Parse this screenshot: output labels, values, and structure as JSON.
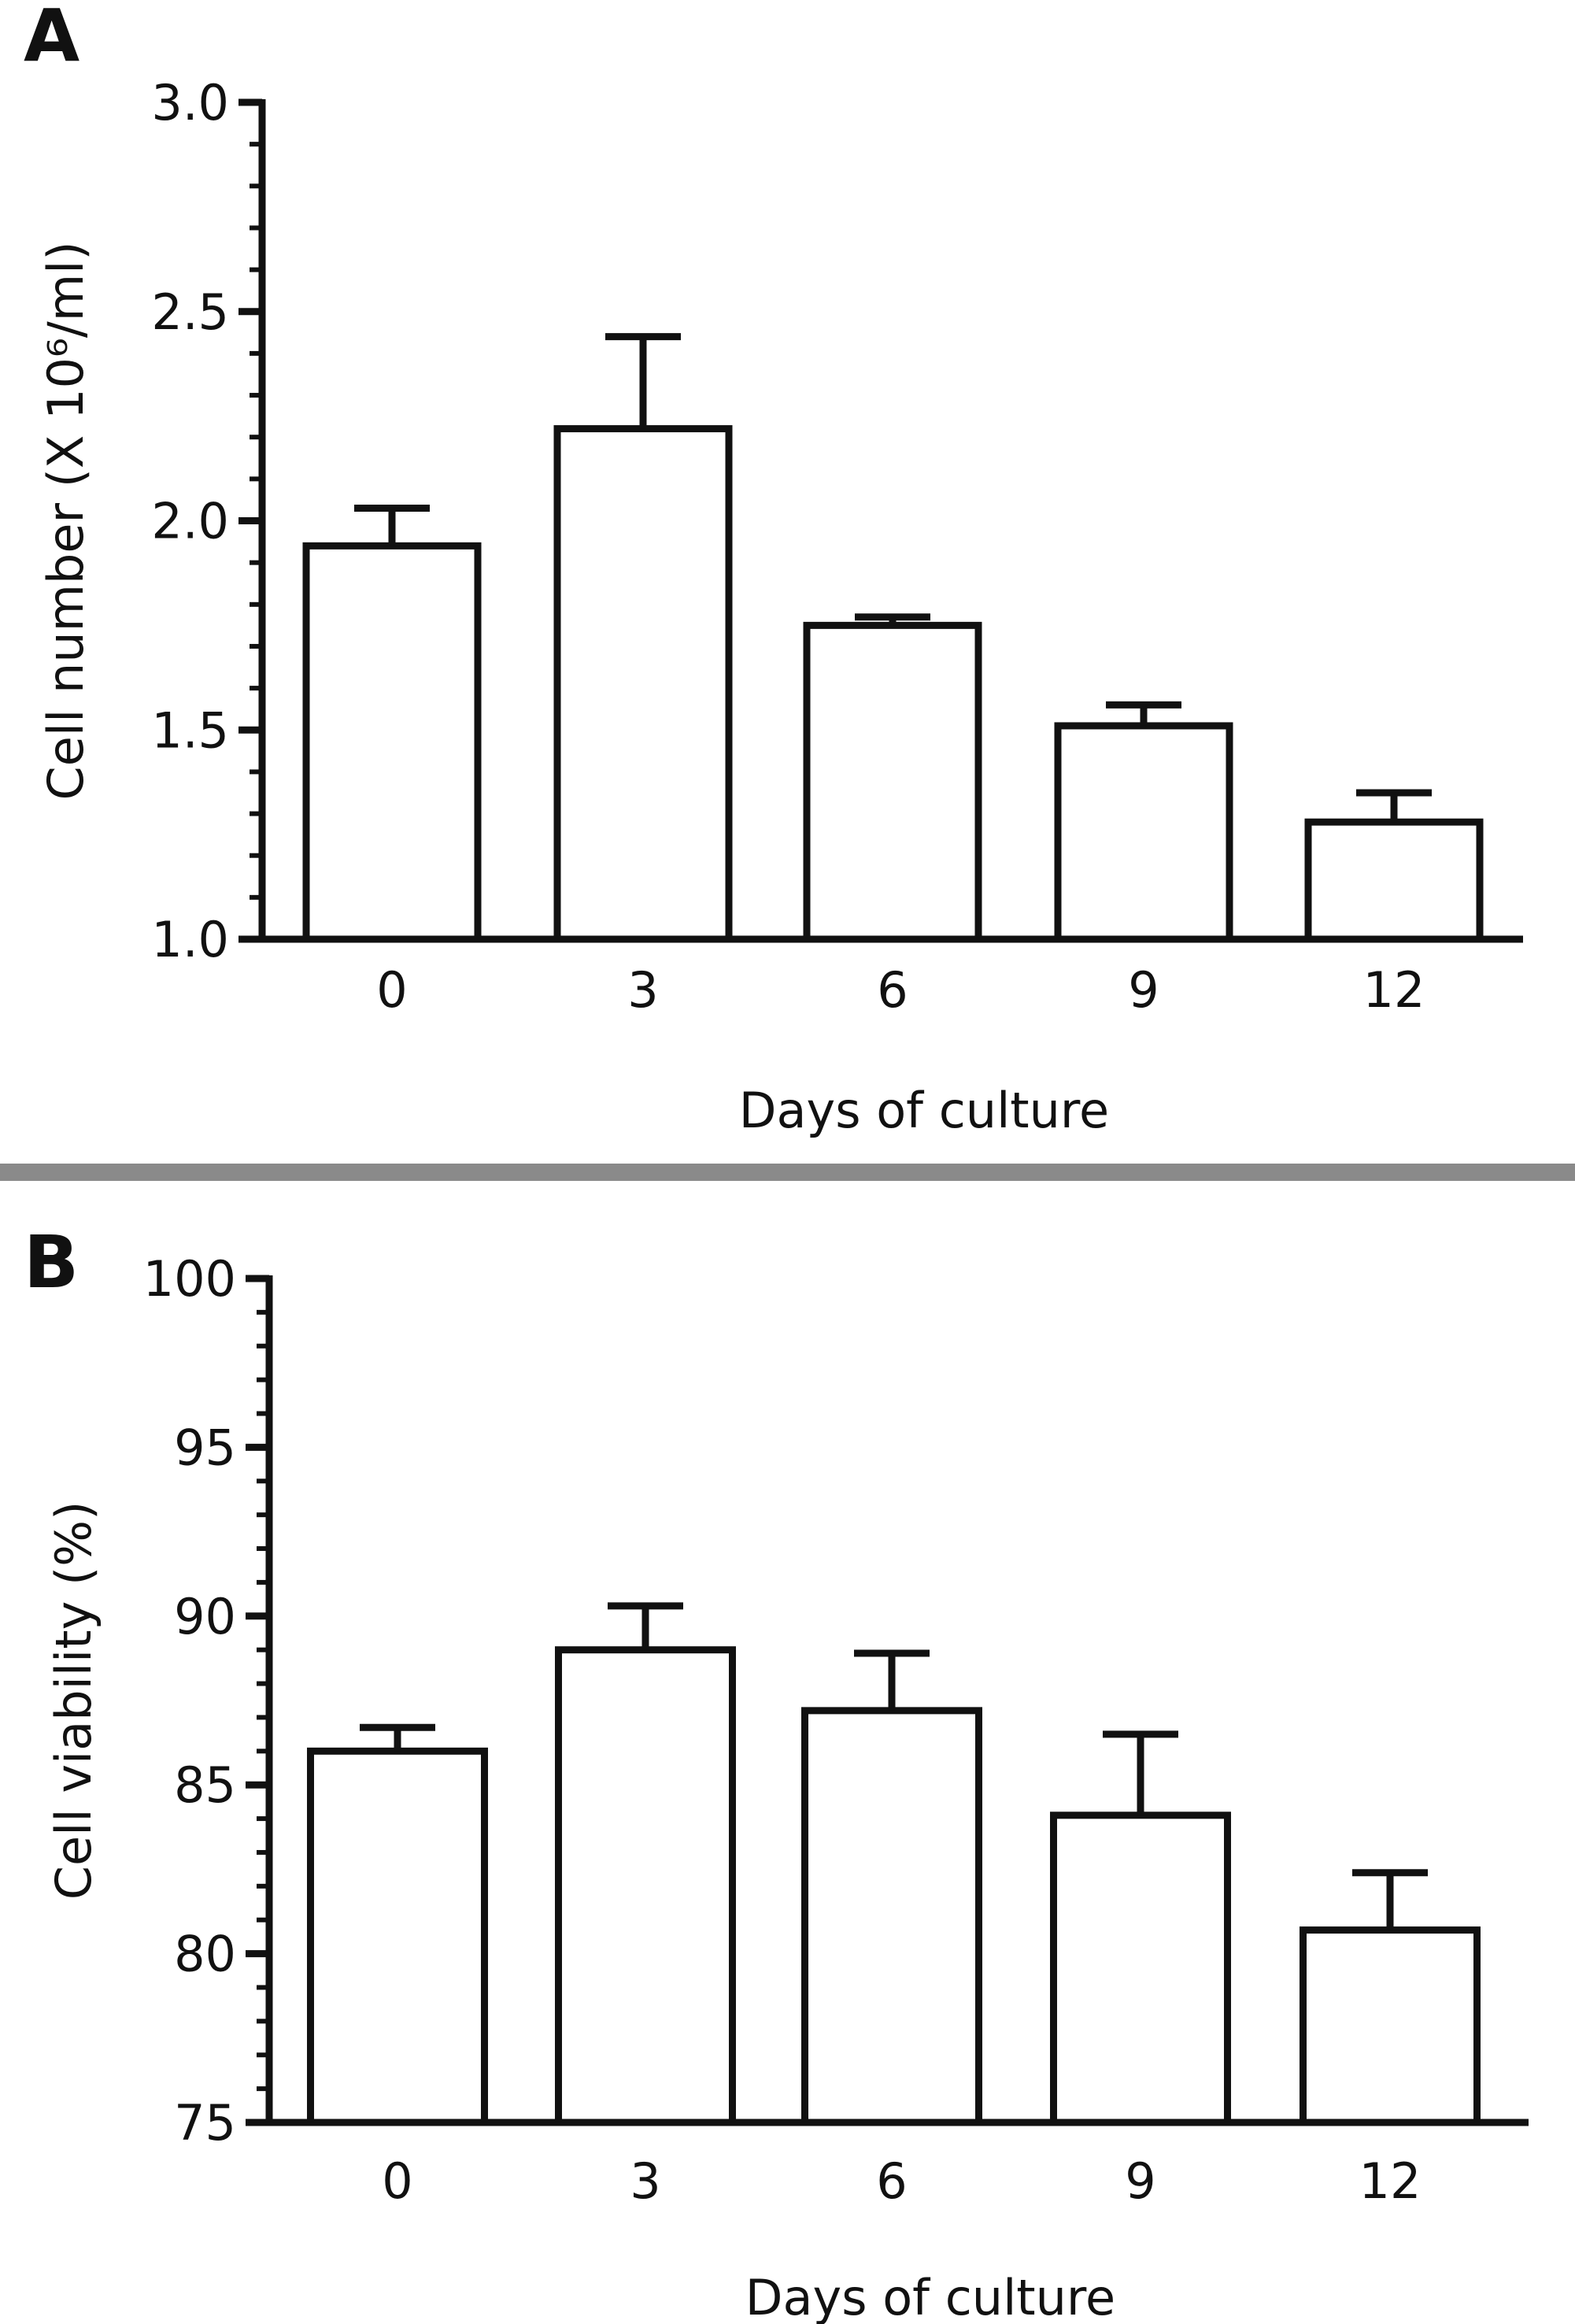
{
  "chart_data": [
    {
      "panel": "A",
      "type": "bar",
      "title": "",
      "xlabel": "Days of culture",
      "ylabel": "Cell number (X 10⁶/ml)",
      "categories": [
        "0",
        "3",
        "6",
        "9",
        "12"
      ],
      "values": [
        1.94,
        2.22,
        1.75,
        1.51,
        1.28
      ],
      "errors": [
        0.09,
        0.22,
        0.02,
        0.05,
        0.07
      ],
      "ylim": [
        1.0,
        3.0
      ],
      "yticks": [
        1.0,
        1.5,
        2.0,
        2.5,
        3.0
      ],
      "ytick_labels": [
        "1.0",
        "1.5",
        "2.0",
        "2.5",
        "3.0"
      ],
      "minor_step": 0.1,
      "grid": false
    },
    {
      "panel": "B",
      "type": "bar",
      "title": "",
      "xlabel": "Days of culture",
      "ylabel": "Cell viability (%)",
      "categories": [
        "0",
        "3",
        "6",
        "9",
        "12"
      ],
      "values": [
        86.0,
        89.0,
        87.2,
        84.1,
        80.7
      ],
      "errors": [
        0.7,
        1.3,
        1.7,
        2.4,
        1.7
      ],
      "ylim": [
        75,
        100
      ],
      "yticks": [
        75,
        80,
        85,
        90,
        95,
        100
      ],
      "ytick_labels": [
        "75",
        "80",
        "85",
        "90",
        "95",
        "100"
      ],
      "minor_step": 1,
      "grid": false
    }
  ]
}
